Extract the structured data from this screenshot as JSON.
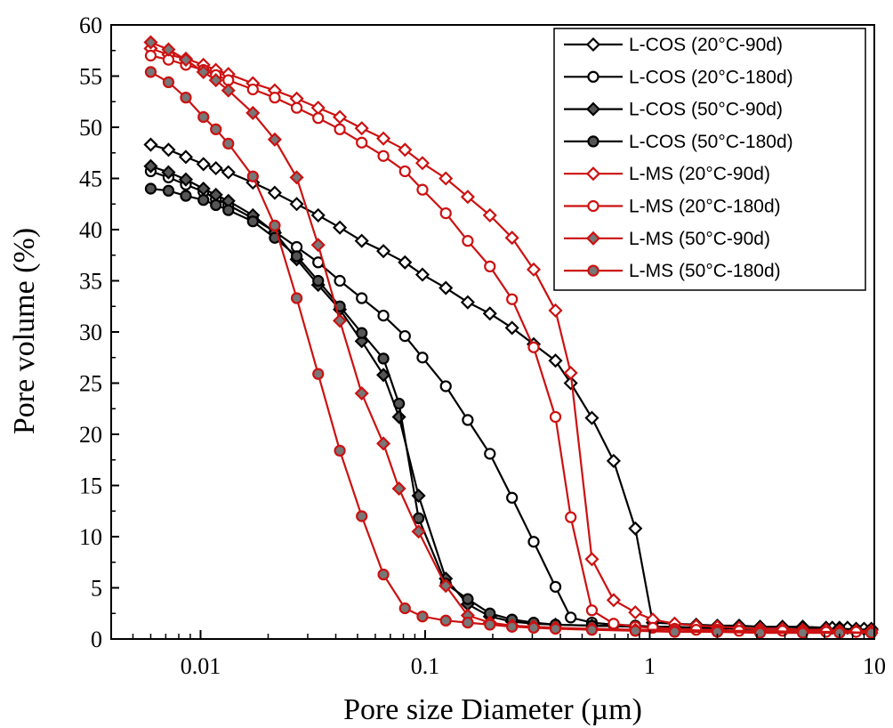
{
  "chart_data": {
    "type": "line",
    "xlabel": "Pore size Diameter (µm)",
    "ylabel": "Pore volume (%)",
    "xscale": "log",
    "xlim": [
      0.004,
      10
    ],
    "ylim": [
      0,
      60
    ],
    "x_ticks": [
      {
        "value": 0.01,
        "label": "0.01"
      },
      {
        "value": 0.1,
        "label": "0.1"
      },
      {
        "value": 1,
        "label": "1"
      },
      {
        "value": 10,
        "label": "10"
      }
    ],
    "y_ticks": [
      {
        "value": 0,
        "label": "0"
      },
      {
        "value": 5,
        "label": "5"
      },
      {
        "value": 10,
        "label": "10"
      },
      {
        "value": 15,
        "label": "15"
      },
      {
        "value": 20,
        "label": "20"
      },
      {
        "value": 25,
        "label": "25"
      },
      {
        "value": 30,
        "label": "30"
      },
      {
        "value": 35,
        "label": "35"
      },
      {
        "value": 40,
        "label": "40"
      },
      {
        "value": 45,
        "label": "45"
      },
      {
        "value": 50,
        "label": "50"
      },
      {
        "value": 55,
        "label": "55"
      },
      {
        "value": 60,
        "label": "60"
      }
    ],
    "grid": false,
    "legend_position": "top-right",
    "series": [
      {
        "name": "L-COS (20°C-90d)",
        "color": "#000000",
        "marker": "diamond",
        "fill": "#ffffff",
        "x": [
          0.006,
          0.0072,
          0.0086,
          0.0103,
          0.0117,
          0.0133,
          0.0171,
          0.0214,
          0.0268,
          0.0334,
          0.0417,
          0.0522,
          0.0652,
          0.0813,
          0.0973,
          0.1236,
          0.1548,
          0.1942,
          0.2437,
          0.3043,
          0.3805,
          0.4449,
          0.5527,
          0.6907,
          0.8627,
          1.032,
          1.291,
          1.61,
          2.0,
          2.5,
          3.1,
          3.9,
          4.8,
          6.1,
          6.5,
          7.0,
          7.6,
          8.3,
          9.0,
          9.7
        ],
        "y": [
          48.3,
          47.8,
          47.1,
          46.4,
          46.0,
          45.6,
          44.6,
          43.6,
          42.5,
          41.4,
          40.2,
          38.9,
          37.9,
          36.8,
          35.6,
          34.3,
          32.9,
          31.8,
          30.4,
          28.8,
          27.2,
          25.0,
          21.6,
          17.4,
          10.8,
          1.6,
          1.5,
          1.4,
          1.3,
          1.3,
          1.2,
          1.2,
          1.2,
          1.1,
          1.1,
          1.1,
          1.1,
          1.0,
          1.0,
          1.0
        ]
      },
      {
        "name": "L-COS (20°C-180d)",
        "color": "#000000",
        "marker": "circle",
        "fill": "#ffffff",
        "x": [
          0.006,
          0.0072,
          0.0086,
          0.0103,
          0.0117,
          0.0133,
          0.0171,
          0.0214,
          0.0268,
          0.0334,
          0.0417,
          0.0522,
          0.0652,
          0.0813,
          0.0973,
          0.1236,
          0.1548,
          0.1942,
          0.2437,
          0.3043,
          0.3805,
          0.4449,
          0.5527,
          0.6907,
          0.8627,
          1.032,
          1.291,
          1.61,
          2.0,
          2.5,
          3.1,
          3.9,
          4.8,
          6.1,
          7.0,
          8.3,
          9.7
        ],
        "y": [
          45.7,
          45.1,
          44.4,
          43.7,
          43.0,
          42.4,
          41.1,
          39.8,
          38.3,
          36.8,
          35.0,
          33.3,
          31.6,
          29.6,
          27.5,
          24.7,
          21.4,
          18.1,
          13.8,
          9.5,
          5.1,
          2.1,
          1.6,
          1.4,
          1.3,
          1.2,
          1.2,
          1.1,
          1.1,
          1.0,
          1.0,
          1.0,
          0.9,
          0.9,
          0.9,
          0.9,
          0.9
        ]
      },
      {
        "name": "L-COS (50°C-90d)",
        "color": "#000000",
        "marker": "diamond",
        "fill": "#555555",
        "x": [
          0.006,
          0.0072,
          0.0086,
          0.0103,
          0.0117,
          0.0133,
          0.0171,
          0.0214,
          0.0268,
          0.0334,
          0.0417,
          0.0522,
          0.0652,
          0.0765,
          0.0935,
          0.1236,
          0.1548,
          0.1942,
          0.2437,
          0.3043,
          0.3805,
          0.5527,
          0.8627,
          1.291,
          2.0,
          3.1,
          4.8,
          7.0,
          9.7
        ],
        "y": [
          46.2,
          45.6,
          44.9,
          44.0,
          43.4,
          42.8,
          41.4,
          39.7,
          37.1,
          34.6,
          32.2,
          29.1,
          25.8,
          21.7,
          14.0,
          5.9,
          3.4,
          2.2,
          1.7,
          1.5,
          1.4,
          1.3,
          1.2,
          1.1,
          1.1,
          1.0,
          1.0,
          0.9,
          0.9
        ]
      },
      {
        "name": "L-COS (50°C-180d)",
        "color": "#000000",
        "marker": "circle",
        "fill": "#555555",
        "x": [
          0.006,
          0.0072,
          0.0086,
          0.0103,
          0.0117,
          0.0133,
          0.0171,
          0.0214,
          0.0268,
          0.0334,
          0.0417,
          0.0522,
          0.0652,
          0.0765,
          0.0935,
          0.1236,
          0.1548,
          0.1942,
          0.2437,
          0.3043,
          0.3805,
          0.5527,
          0.8627,
          1.291,
          2.0,
          3.1,
          4.8,
          7.0,
          9.7
        ],
        "y": [
          44.0,
          43.8,
          43.3,
          42.9,
          42.4,
          41.9,
          40.8,
          39.2,
          37.4,
          35.0,
          32.5,
          29.9,
          27.4,
          23.0,
          11.8,
          5.4,
          3.9,
          2.5,
          1.9,
          1.6,
          1.4,
          1.3,
          1.2,
          1.1,
          1.1,
          1.0,
          1.0,
          1.0,
          0.9
        ]
      },
      {
        "name": "L-MS (20°C-90d)",
        "color": "#cc1111",
        "marker": "diamond",
        "fill": "#ffffff",
        "x": [
          0.006,
          0.0072,
          0.0086,
          0.0103,
          0.0117,
          0.0133,
          0.0171,
          0.0214,
          0.0268,
          0.0334,
          0.0417,
          0.0522,
          0.0652,
          0.0813,
          0.0973,
          0.1236,
          0.1548,
          0.1942,
          0.2437,
          0.3043,
          0.3805,
          0.4449,
          0.5527,
          0.6907,
          0.8627,
          1.032,
          1.291,
          1.61,
          2.0,
          2.5,
          3.1,
          3.9,
          4.8,
          6.1,
          7.0,
          8.3,
          9.7
        ],
        "y": [
          57.7,
          57.1,
          56.7,
          56.1,
          55.6,
          55.2,
          54.3,
          53.6,
          52.8,
          51.9,
          51.0,
          49.9,
          48.9,
          47.8,
          46.5,
          45.0,
          43.2,
          41.4,
          39.2,
          36.1,
          32.1,
          26.0,
          7.8,
          3.8,
          2.6,
          1.9,
          1.5,
          1.3,
          1.2,
          1.1,
          1.0,
          1.0,
          0.9,
          0.9,
          0.8,
          0.8,
          0.8
        ]
      },
      {
        "name": "L-MS (20°C-180d)",
        "color": "#cc1111",
        "marker": "circle",
        "fill": "#ffffff",
        "x": [
          0.006,
          0.0072,
          0.0086,
          0.0103,
          0.0117,
          0.0133,
          0.0171,
          0.0214,
          0.0268,
          0.0334,
          0.0417,
          0.0522,
          0.0652,
          0.0813,
          0.0973,
          0.1236,
          0.1548,
          0.1942,
          0.2437,
          0.3043,
          0.3805,
          0.4449,
          0.5527,
          0.6907,
          0.8627,
          1.032,
          1.291,
          1.61,
          2.0,
          2.5,
          3.1,
          3.9,
          4.8,
          6.1,
          7.0,
          8.3,
          9.7
        ],
        "y": [
          57.0,
          56.6,
          56.1,
          55.6,
          55.1,
          54.6,
          53.7,
          52.9,
          51.9,
          50.9,
          49.8,
          48.5,
          47.2,
          45.7,
          43.9,
          41.6,
          38.9,
          36.4,
          33.2,
          28.5,
          21.7,
          11.9,
          2.8,
          1.5,
          1.2,
          1.1,
          1.0,
          0.9,
          0.9,
          0.8,
          0.8,
          0.8,
          0.8,
          0.7,
          0.7,
          0.7,
          0.7
        ]
      },
      {
        "name": "L-MS (50°C-90d)",
        "color": "#cc1111",
        "marker": "diamond",
        "fill": "#777777",
        "x": [
          0.006,
          0.0072,
          0.0086,
          0.0103,
          0.0117,
          0.0133,
          0.0171,
          0.0214,
          0.0268,
          0.0334,
          0.0417,
          0.0522,
          0.0652,
          0.0765,
          0.0935,
          0.1236,
          0.1548,
          0.1942,
          0.2437,
          0.3043,
          0.3805,
          0.5527,
          0.8627,
          1.291,
          2.0,
          3.1,
          4.8,
          7.0,
          9.7
        ],
        "y": [
          58.3,
          57.6,
          56.6,
          55.4,
          54.6,
          53.6,
          51.4,
          48.8,
          45.1,
          38.5,
          31.1,
          24.0,
          19.1,
          14.7,
          10.5,
          5.2,
          2.3,
          1.6,
          1.3,
          1.2,
          1.1,
          1.0,
          0.9,
          0.9,
          0.8,
          0.8,
          0.7,
          0.7,
          0.6
        ]
      },
      {
        "name": "L-MS (50°C-180d)",
        "color": "#cc1111",
        "marker": "circle",
        "fill": "#777777",
        "x": [
          0.006,
          0.0072,
          0.0086,
          0.0103,
          0.0117,
          0.0133,
          0.0171,
          0.0214,
          0.0268,
          0.0334,
          0.0417,
          0.0522,
          0.0652,
          0.0813,
          0.0973,
          0.1236,
          0.1548,
          0.1942,
          0.2437,
          0.3043,
          0.3805,
          0.5527,
          0.8627,
          1.291,
          2.0,
          3.1,
          4.8,
          7.0,
          9.7
        ],
        "y": [
          55.4,
          54.4,
          52.9,
          51.0,
          49.8,
          48.4,
          45.2,
          40.4,
          33.3,
          25.9,
          18.4,
          12.0,
          6.3,
          3.0,
          2.2,
          1.8,
          1.6,
          1.4,
          1.2,
          1.1,
          1.0,
          0.9,
          0.8,
          0.7,
          0.7,
          0.6,
          0.6,
          0.6,
          0.6
        ]
      }
    ]
  }
}
